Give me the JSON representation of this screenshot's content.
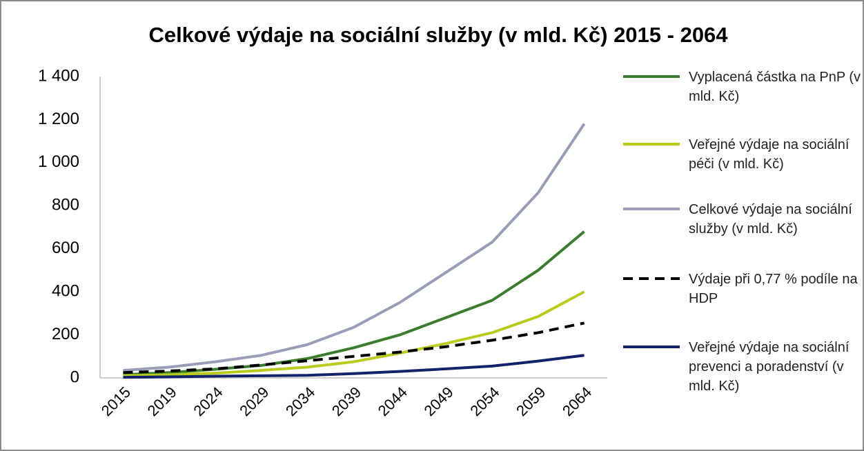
{
  "chart_data": {
    "type": "line",
    "title": "Celkové výdaje na sociální služby (v mld. Kč) 2015 - 2064",
    "categories": [
      "2015",
      "2019",
      "2024",
      "2029",
      "2034",
      "2039",
      "2044",
      "2049",
      "2054",
      "2059",
      "2064"
    ],
    "series": [
      {
        "name": "Vyplacená částka na PnP (v mld. Kč)",
        "color": "#3a7d2c",
        "values": [
          15,
          25,
          40,
          58,
          90,
          140,
          200,
          280,
          360,
          500,
          680
        ]
      },
      {
        "name": "Veřejné výdaje na sociální péči (v mld. Kč)",
        "color": "#b9cc1e",
        "values": [
          10,
          15,
          22,
          35,
          50,
          75,
          115,
          160,
          210,
          285,
          400
        ]
      },
      {
        "name": "Celkové výdaje na sociální služby (v mld. Kč)",
        "color": "#9a9cb8",
        "values": [
          35,
          50,
          75,
          105,
          155,
          235,
          350,
          490,
          630,
          860,
          1180
        ]
      },
      {
        "name": "Výdaje při 0,77 % podíle na HDP",
        "color": "#000000",
        "dashed": true,
        "values": [
          25,
          32,
          42,
          60,
          80,
          100,
          120,
          145,
          175,
          210,
          255
        ]
      },
      {
        "name": "Veřejné výdaje na sociální prevenci a poradenství (v mld. Kč)",
        "color": "#12236b",
        "values": [
          3,
          5,
          8,
          10,
          12,
          20,
          30,
          42,
          55,
          78,
          105
        ]
      }
    ],
    "ylim": [
      0,
      1400
    ],
    "yticks": [
      0,
      200,
      400,
      600,
      800,
      {
        "value": 1000,
        "label": "1 000"
      },
      {
        "value": 1200,
        "label": "1 200"
      },
      {
        "value": 1400,
        "label": "1 400"
      }
    ],
    "grid": false,
    "legend": "right"
  }
}
